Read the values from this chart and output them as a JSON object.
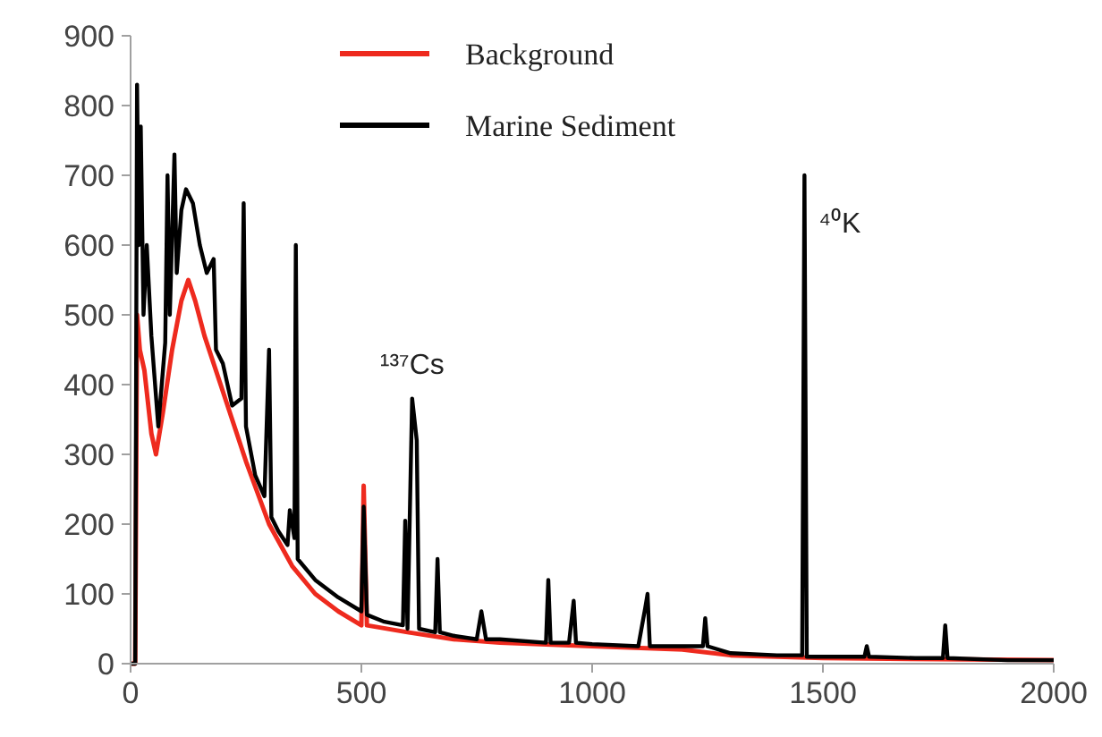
{
  "chart_data": {
    "type": "line",
    "xlim": [
      0,
      2000
    ],
    "xticks": [
      0,
      500,
      1000,
      1500,
      2000
    ],
    "ylim": [
      0,
      900
    ],
    "yticks": [
      0,
      100,
      200,
      300,
      400,
      500,
      600,
      700,
      800,
      900
    ],
    "grid": false,
    "legend": "top",
    "line_style": "solid",
    "annotations": [
      {
        "text": "¹³⁷Cs",
        "x": 610,
        "y": 380
      },
      {
        "text": "⁴⁰K",
        "x": 1460,
        "y": 700
      }
    ],
    "series": [
      {
        "name": "Background",
        "color": "#ee2a1e",
        "x": [
          0,
          10,
          14,
          20,
          30,
          45,
          55,
          70,
          90,
          110,
          125,
          140,
          160,
          200,
          250,
          300,
          350,
          400,
          450,
          500,
          505,
          512,
          600,
          700,
          800,
          1000,
          1200,
          1300,
          1500,
          2000
        ],
        "values": [
          0,
          0,
          500,
          450,
          420,
          330,
          300,
          360,
          450,
          520,
          550,
          520,
          470,
          390,
          290,
          200,
          140,
          100,
          75,
          55,
          255,
          55,
          45,
          35,
          30,
          25,
          20,
          12,
          8,
          5
        ]
      },
      {
        "name": "Marine Sediment",
        "color": "#000000",
        "x": [
          0,
          10,
          14,
          18,
          22,
          28,
          35,
          45,
          60,
          75,
          80,
          85,
          95,
          100,
          110,
          120,
          135,
          150,
          165,
          180,
          185,
          200,
          220,
          240,
          245,
          250,
          270,
          290,
          300,
          305,
          320,
          340,
          345,
          355,
          358,
          362,
          400,
          450,
          500,
          505,
          512,
          550,
          590,
          595,
          600,
          610,
          620,
          625,
          660,
          665,
          670,
          700,
          750,
          760,
          770,
          800,
          900,
          905,
          910,
          950,
          960,
          965,
          1000,
          1100,
          1115,
          1120,
          1125,
          1200,
          1240,
          1245,
          1250,
          1300,
          1400,
          1455,
          1460,
          1465,
          1500,
          1590,
          1595,
          1600,
          1700,
          1760,
          1765,
          1770,
          1900,
          2000
        ],
        "values": [
          0,
          0,
          830,
          600,
          770,
          500,
          600,
          470,
          340,
          460,
          700,
          500,
          730,
          560,
          650,
          680,
          660,
          600,
          560,
          580,
          450,
          430,
          370,
          380,
          660,
          340,
          270,
          240,
          450,
          210,
          190,
          170,
          220,
          180,
          600,
          150,
          120,
          95,
          75,
          225,
          70,
          60,
          55,
          205,
          50,
          380,
          320,
          50,
          45,
          150,
          45,
          40,
          35,
          75,
          35,
          35,
          30,
          120,
          30,
          30,
          90,
          30,
          28,
          25,
          80,
          100,
          25,
          25,
          25,
          65,
          25,
          15,
          12,
          12,
          700,
          10,
          10,
          10,
          25,
          10,
          8,
          8,
          55,
          8,
          5,
          5
        ]
      }
    ]
  }
}
